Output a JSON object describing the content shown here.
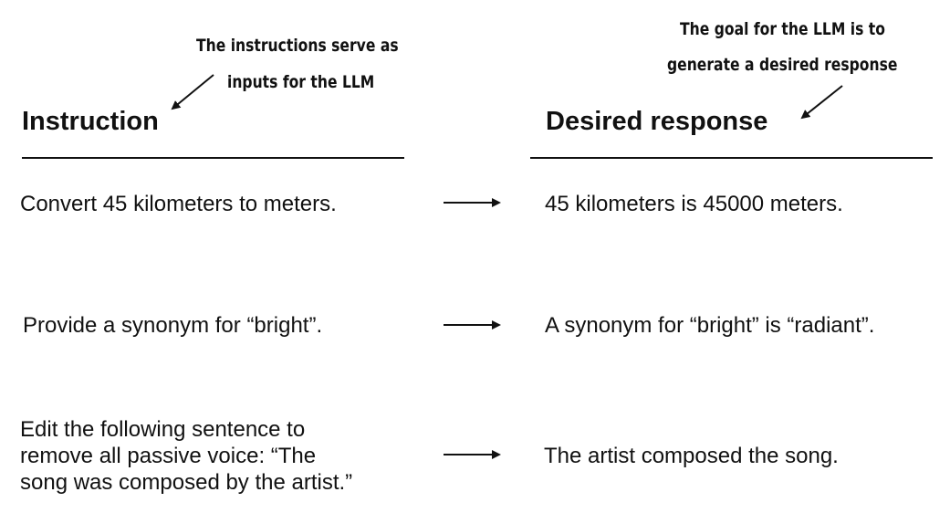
{
  "annotations": {
    "left": {
      "line1": "The instructions serve as",
      "line2": "inputs for the LLM"
    },
    "right": {
      "line1": "The goal for the LLM is to",
      "line2": "generate a desired response"
    }
  },
  "columns": {
    "instruction_header": "Instruction",
    "response_header": "Desired response"
  },
  "rows": [
    {
      "instruction_lines": [
        "Convert 45 kilometers to meters."
      ],
      "response": "45 kilometers is 45000 meters."
    },
    {
      "instruction_lines": [
        "Provide a synonym for “bright”."
      ],
      "response": "A synonym for “bright” is “radiant”."
    },
    {
      "instruction_lines": [
        "Edit the following sentence to",
        "remove all passive voice: “The",
        "song was composed by the artist.”"
      ],
      "response": "The artist composed the song."
    }
  ],
  "icons": {
    "row_arrow": "right-arrow-icon",
    "annotation_pointer": "pointer-arrow-icon"
  },
  "colors": {
    "text": "#111111",
    "background": "#ffffff"
  }
}
